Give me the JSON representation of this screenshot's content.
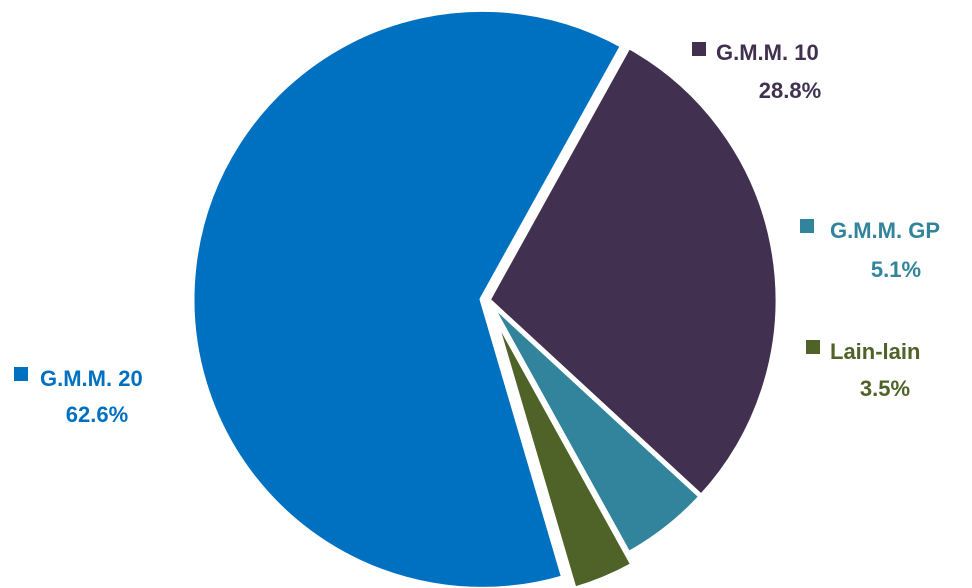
{
  "chart_data": {
    "type": "pie",
    "title": "",
    "slices": [
      {
        "label": "G.M.M. 10",
        "value": 28.8,
        "value_label": "28.8%",
        "color": "#41304F"
      },
      {
        "label": "G.M.M. GP",
        "value": 5.1,
        "value_label": "5.1%",
        "color": "#31849B"
      },
      {
        "label": "Lain-lain",
        "value": 3.5,
        "value_label": "3.5%",
        "color": "#4F6228"
      },
      {
        "label": "G.M.M. 20",
        "value": 62.6,
        "value_label": "62.6%",
        "color": "#0070C0"
      }
    ],
    "legend": "labels beside slices",
    "exploded": true
  }
}
